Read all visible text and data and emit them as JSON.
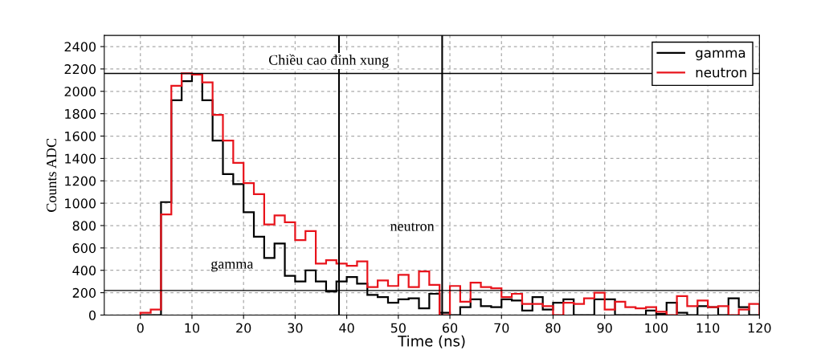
{
  "chart_data": {
    "type": "histogram",
    "xlabel": "Time (ns)",
    "ylabel": "Counts ADC",
    "bins": [
      0,
      2,
      4,
      6,
      8,
      10,
      12,
      14,
      16,
      18,
      20,
      22,
      24,
      26,
      28,
      30,
      32,
      34,
      36,
      38,
      40,
      42,
      44,
      46,
      48,
      50,
      52,
      54,
      56,
      58,
      60,
      62,
      64,
      66,
      68,
      70,
      72,
      74,
      76,
      78,
      80,
      82,
      84,
      86,
      88,
      90,
      92,
      94,
      96,
      98,
      100,
      102,
      104,
      106,
      108,
      110,
      112,
      114,
      116,
      118,
      120
    ],
    "series": [
      {
        "name": "gamma",
        "color": "#000000",
        "values": [
          0,
          0,
          1010,
          1920,
          2090,
          2150,
          1920,
          1560,
          1260,
          1170,
          920,
          700,
          510,
          640,
          350,
          300,
          400,
          300,
          210,
          300,
          340,
          280,
          180,
          160,
          110,
          140,
          150,
          60,
          190,
          20,
          0,
          70,
          140,
          80,
          70,
          140,
          130,
          40,
          160,
          50,
          110,
          140,
          0,
          0,
          140,
          140,
          0,
          0,
          0,
          40,
          10,
          110,
          20,
          0,
          80,
          70,
          0,
          150,
          70,
          0
        ]
      },
      {
        "name": "neutron",
        "color": "#e8141c",
        "values": [
          20,
          50,
          900,
          2050,
          2160,
          2150,
          2080,
          1790,
          1560,
          1360,
          1180,
          1080,
          810,
          890,
          830,
          670,
          750,
          460,
          490,
          460,
          440,
          480,
          250,
          310,
          260,
          360,
          250,
          390,
          270,
          0,
          260,
          120,
          290,
          250,
          240,
          160,
          190,
          100,
          100,
          80,
          0,
          110,
          100,
          150,
          200,
          50,
          120,
          70,
          60,
          70,
          30,
          0,
          170,
          80,
          130,
          70,
          80,
          0,
          50,
          100
        ]
      }
    ],
    "xlim": [
      -7,
      120
    ],
    "xticks": [
      0,
      10,
      20,
      30,
      40,
      50,
      60,
      70,
      80,
      90,
      100,
      110,
      120
    ],
    "ylim": [
      0,
      2500
    ],
    "yticks": [
      0,
      200,
      400,
      600,
      800,
      1000,
      1200,
      1400,
      1600,
      1800,
      2000,
      2200,
      2400
    ],
    "grid": true,
    "legend": "top right",
    "ref_lines": [
      {
        "axis": "y",
        "value": 2160,
        "label": "Chiều cao đỉnh xung",
        "color": "#000000"
      },
      {
        "axis": "y",
        "value": 220,
        "color": "#000000"
      },
      {
        "axis": "x",
        "value": 38.5,
        "color": "#000000"
      },
      {
        "axis": "x",
        "value": 58.5,
        "color": "#000000"
      }
    ],
    "annotations": [
      "neutron",
      "gamma"
    ]
  }
}
